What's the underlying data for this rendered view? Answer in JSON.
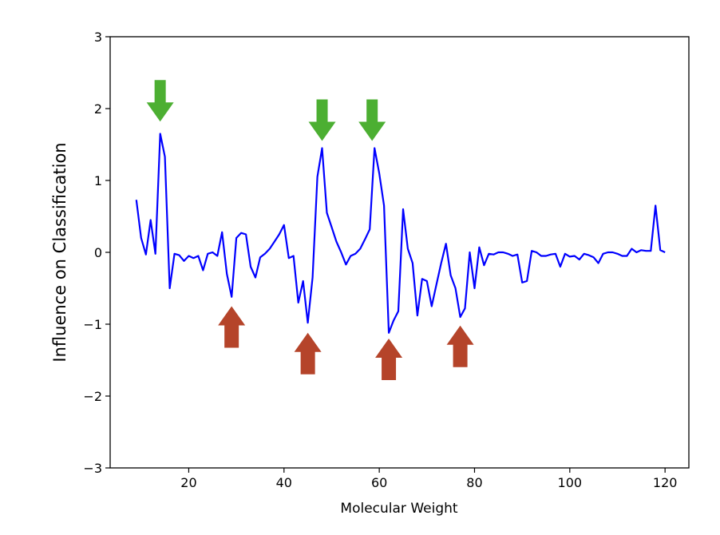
{
  "chart_data": {
    "type": "line",
    "title": "",
    "xlabel": "Molecular Weight",
    "ylabel": "Influence on Classification",
    "xlim": [
      3.5,
      125
    ],
    "ylim": [
      -3,
      3
    ],
    "xticks": [
      20,
      40,
      60,
      80,
      100,
      120
    ],
    "yticks": [
      -3,
      -2,
      -1,
      0,
      1,
      2,
      3
    ],
    "grid": false,
    "colors": {
      "line": "#0000ff",
      "down_arrow": "#4caf32",
      "up_arrow": "#b5442a",
      "axes": "#000000"
    },
    "series": [
      {
        "x": [
          9,
          10,
          11,
          12,
          13,
          14,
          15,
          16,
          17,
          18,
          19,
          20,
          21,
          22,
          23,
          24,
          25,
          26,
          27,
          28,
          29,
          30,
          31,
          32,
          33,
          34,
          35,
          36,
          37,
          38,
          39,
          40,
          41,
          42,
          43,
          44,
          45,
          46,
          47,
          48,
          49,
          50,
          51,
          52,
          53,
          54,
          55,
          56,
          57,
          58,
          59,
          60,
          61,
          62,
          63,
          64,
          65,
          66,
          67,
          68,
          69,
          70,
          71,
          72,
          73,
          74,
          75,
          76,
          77,
          78,
          79,
          80,
          81,
          82,
          83,
          84,
          85,
          86,
          87,
          88,
          89,
          90,
          91,
          92,
          93,
          94,
          95,
          96,
          97,
          98,
          99,
          100,
          101,
          102,
          103,
          104,
          105,
          106,
          107,
          108,
          109,
          110,
          111,
          112,
          113,
          114,
          115,
          116,
          117,
          118,
          119,
          120
        ],
        "values": [
          0.73,
          0.2,
          -0.03,
          0.45,
          -0.02,
          1.65,
          1.33,
          -0.5,
          -0.02,
          -0.04,
          -0.12,
          -0.05,
          -0.08,
          -0.05,
          -0.25,
          -0.02,
          0.0,
          -0.05,
          0.28,
          -0.3,
          -0.62,
          0.2,
          0.27,
          0.25,
          -0.2,
          -0.35,
          -0.07,
          -0.02,
          0.05,
          0.15,
          0.25,
          0.38,
          -0.08,
          -0.05,
          -0.7,
          -0.4,
          -0.98,
          -0.35,
          1.05,
          1.45,
          0.55,
          0.35,
          0.15,
          0.0,
          -0.17,
          -0.05,
          -0.02,
          0.05,
          0.18,
          0.32,
          1.45,
          1.1,
          0.65,
          -1.12,
          -0.95,
          -0.82,
          0.6,
          0.05,
          -0.15,
          -0.88,
          -0.37,
          -0.4,
          -0.75,
          -0.45,
          -0.15,
          0.12,
          -0.32,
          -0.5,
          -0.9,
          -0.78,
          0.0,
          -0.5,
          0.07,
          -0.18,
          -0.02,
          -0.03,
          0.0,
          0.0,
          -0.02,
          -0.05,
          -0.03,
          -0.42,
          -0.4,
          0.02,
          0.0,
          -0.05,
          -0.05,
          -0.03,
          -0.02,
          -0.2,
          -0.02,
          -0.06,
          -0.05,
          -0.1,
          -0.02,
          -0.04,
          -0.07,
          -0.15,
          -0.02,
          0.0,
          0.0,
          -0.02,
          -0.05,
          -0.05,
          0.05,
          0.0,
          0.03,
          0.02,
          0.02,
          0.65,
          0.03,
          0.0
        ]
      }
    ],
    "annotations": [
      {
        "type": "down-arrow",
        "x": 14,
        "y_tip": 1.82
      },
      {
        "type": "down-arrow",
        "x": 48,
        "y_tip": 1.55
      },
      {
        "type": "down-arrow",
        "x": 58.5,
        "y_tip": 1.55
      },
      {
        "type": "up-arrow",
        "x": 29,
        "y_tip": -0.75
      },
      {
        "type": "up-arrow",
        "x": 45,
        "y_tip": -1.12
      },
      {
        "type": "up-arrow",
        "x": 62,
        "y_tip": -1.2
      },
      {
        "type": "up-arrow",
        "x": 77,
        "y_tip": -1.02
      }
    ]
  }
}
